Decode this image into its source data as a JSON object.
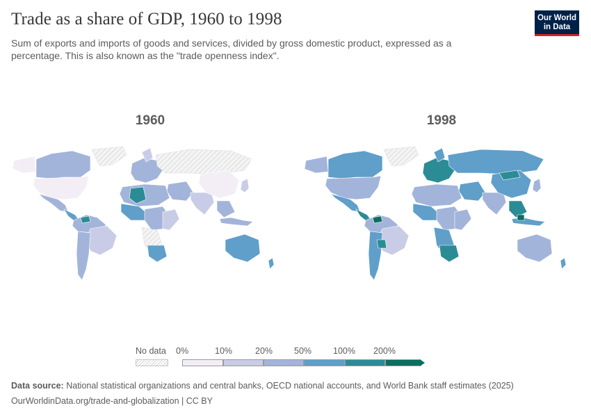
{
  "header": {
    "title": "Trade as a share of GDP, 1960 to 1998",
    "subtitle": "Sum of exports and imports of goods and services, divided by gross domestic product, expressed as a percentage. This is also known as the \"trade openness index\".",
    "logo_line1": "Our World",
    "logo_line2": "in Data"
  },
  "maps": {
    "left_year": "1960",
    "right_year": "1998"
  },
  "legend": {
    "no_data_label": "No data",
    "ticks": [
      "0%",
      "10%",
      "20%",
      "50%",
      "100%",
      "200%"
    ],
    "colors": [
      "#f3eef6",
      "#c9cce6",
      "#a3b4da",
      "#5f9fc9",
      "#2b8c95",
      "#0a6f5e"
    ],
    "no_data_color": "#e6e6e6"
  },
  "footer": {
    "source_label": "Data source:",
    "source_text": "National statistical organizations and central banks, OECD national accounts, and World Bank staff estimates (2025)",
    "url_text": "OurWorldinData.org/trade-and-globalization | CC BY"
  }
}
